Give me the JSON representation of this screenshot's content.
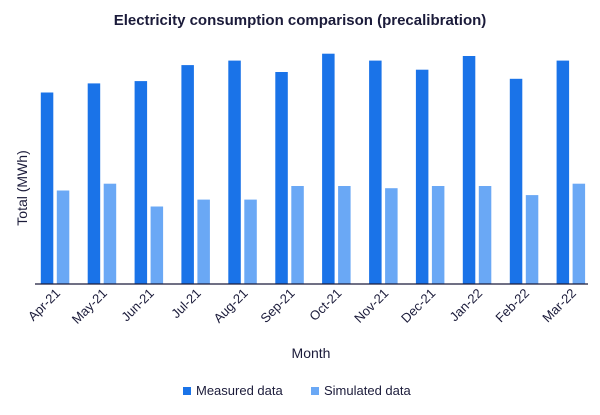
{
  "chart_data": {
    "type": "bar",
    "title": "Electricity consumption comparison (precalibration)",
    "xlabel": "Month",
    "ylabel": "Total (MWh)",
    "ylim": [
      0,
      100
    ],
    "grid": false,
    "legend_position": "bottom-center",
    "categories": [
      "Apr-21",
      "May-21",
      "Jun-21",
      "Jul-21",
      "Aug-21",
      "Sep-21",
      "Oct-21",
      "Nov-21",
      "Dec-21",
      "Jan-22",
      "Feb-22",
      "Mar-22"
    ],
    "series": [
      {
        "name": "Measured data",
        "color": "#1a73e8",
        "values": [
          84,
          88,
          89,
          96,
          98,
          93,
          101,
          98,
          94,
          100,
          90,
          98
        ]
      },
      {
        "name": "Simulated data",
        "color": "#6aa8f5",
        "values": [
          41,
          44,
          34,
          37,
          37,
          43,
          43,
          42,
          43,
          43,
          39,
          44
        ]
      }
    ]
  }
}
